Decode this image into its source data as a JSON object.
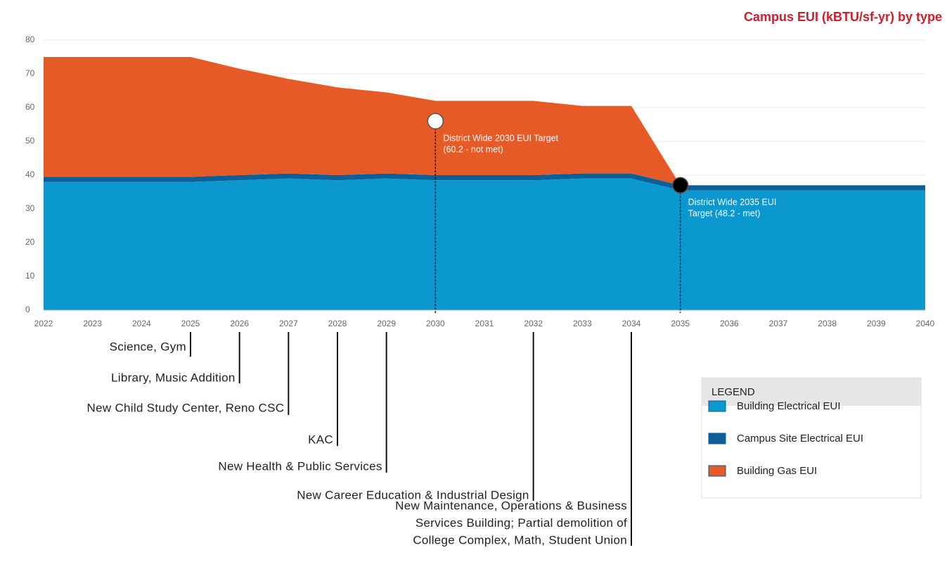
{
  "chart_data": {
    "type": "stacked_area",
    "title": "Campus EUI (kBTU/sf-yr) by type",
    "x": [
      2022,
      2023,
      2024,
      2025,
      2026,
      2027,
      2028,
      2029,
      2030,
      2031,
      2032,
      2033,
      2034,
      2035,
      2036,
      2037,
      2038,
      2039,
      2040
    ],
    "series": [
      {
        "name": "Building Electrical EUI",
        "color": "#0a98cf",
        "values": [
          38,
          38,
          38,
          38,
          38.5,
          39,
          38.5,
          39,
          38.5,
          38.5,
          38.5,
          39,
          39,
          35.5,
          35.5,
          35.5,
          35.5,
          35.5,
          35.5
        ]
      },
      {
        "name": "Campus Site Electrical EUI",
        "color": "#0d5f97",
        "values": [
          1.5,
          1.5,
          1.5,
          1.5,
          1.5,
          1.5,
          1.5,
          1.5,
          1.5,
          1.5,
          1.5,
          1.5,
          1.5,
          1.5,
          1.5,
          1.5,
          1.5,
          1.5,
          1.5
        ]
      },
      {
        "name": "Building Gas EUI",
        "color": "#e55a27",
        "values": [
          35.5,
          35.5,
          35.5,
          35.5,
          31.5,
          28,
          26,
          24,
          22,
          22,
          22,
          20,
          20,
          0,
          0,
          0,
          0,
          0,
          0
        ]
      }
    ],
    "xlim": [
      2022,
      2040
    ],
    "xticks": [
      2022,
      2023,
      2024,
      2025,
      2026,
      2027,
      2028,
      2029,
      2030,
      2031,
      2032,
      2033,
      2034,
      2035,
      2036,
      2037,
      2038,
      2039,
      2040
    ],
    "ylim": [
      0,
      80
    ],
    "yticks": [
      0,
      10,
      20,
      30,
      40,
      50,
      60,
      70,
      80
    ],
    "grid": true,
    "legend_title": "LEGEND",
    "targets": [
      {
        "x": 2030,
        "y": 56,
        "marker": "#ffffff",
        "lines": [
          "District Wide 2030 EUI Target",
          "(60.2 - not met)"
        ]
      },
      {
        "x": 2035,
        "y": 37,
        "marker": "#000000",
        "lines": [
          "District Wide 2035 EUI",
          "Target (48.2 - met)"
        ]
      }
    ],
    "milestones": [
      {
        "x": 2025,
        "lines": [
          "Science, Gym"
        ]
      },
      {
        "x": 2026,
        "lines": [
          "Library, Music Addition"
        ]
      },
      {
        "x": 2027,
        "lines": [
          "New Child Study Center, Reno CSC"
        ]
      },
      {
        "x": 2028,
        "lines": [
          "KAC"
        ]
      },
      {
        "x": 2029,
        "lines": [
          "New Health & Public Services"
        ]
      },
      {
        "x": 2032,
        "lines": [
          "New Career Education & Industrial Design"
        ]
      },
      {
        "x": 2034,
        "lines": [
          "New Maintenance, Operations & Business",
          "Services Building; Partial  demolition of",
          "College Complex, Math, Student Union"
        ]
      }
    ]
  }
}
